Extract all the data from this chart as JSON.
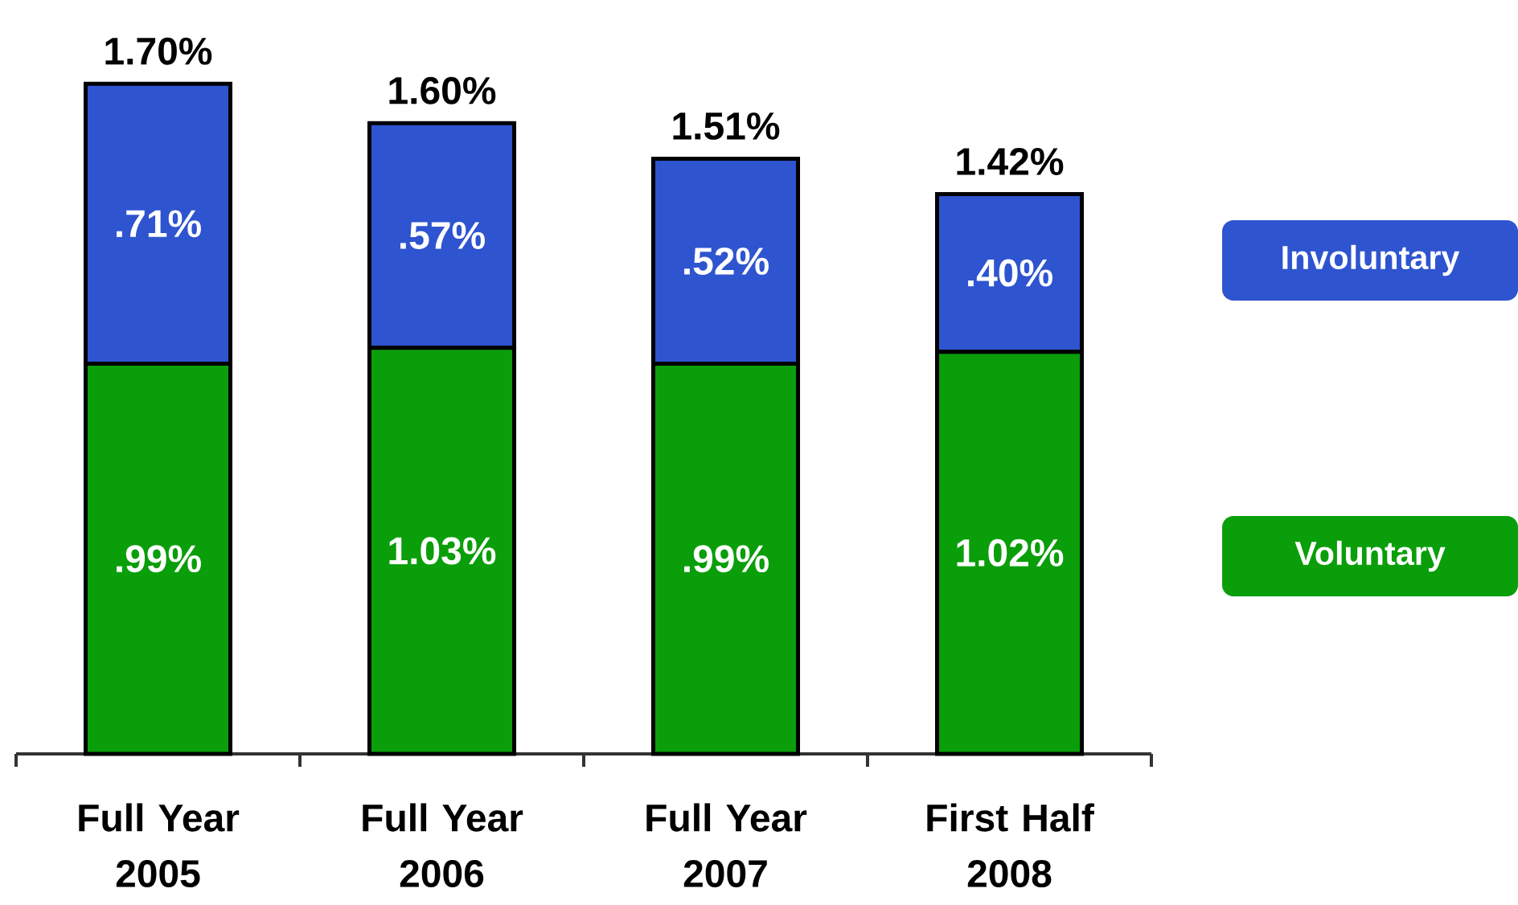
{
  "chart_data": {
    "type": "bar",
    "stacked": true,
    "categories": [
      "Full Year 2005",
      "Full Year 2006",
      "Full Year 2007",
      "First Half 2008"
    ],
    "series": [
      {
        "name": "Voluntary",
        "color": "#0a9e0a",
        "values": [
          0.99,
          1.03,
          0.99,
          1.02
        ],
        "value_labels": [
          ".99%",
          "1.03%",
          ".99%",
          "1.02%"
        ]
      },
      {
        "name": "Involuntary",
        "color": "#2f54d0",
        "values": [
          0.71,
          0.57,
          0.52,
          0.4
        ],
        "value_labels": [
          ".71%",
          ".57%",
          ".52%",
          ".40%"
        ]
      }
    ],
    "totals": [
      "1.70%",
      "1.60%",
      "1.51%",
      "1.42%"
    ],
    "legend": "right"
  }
}
